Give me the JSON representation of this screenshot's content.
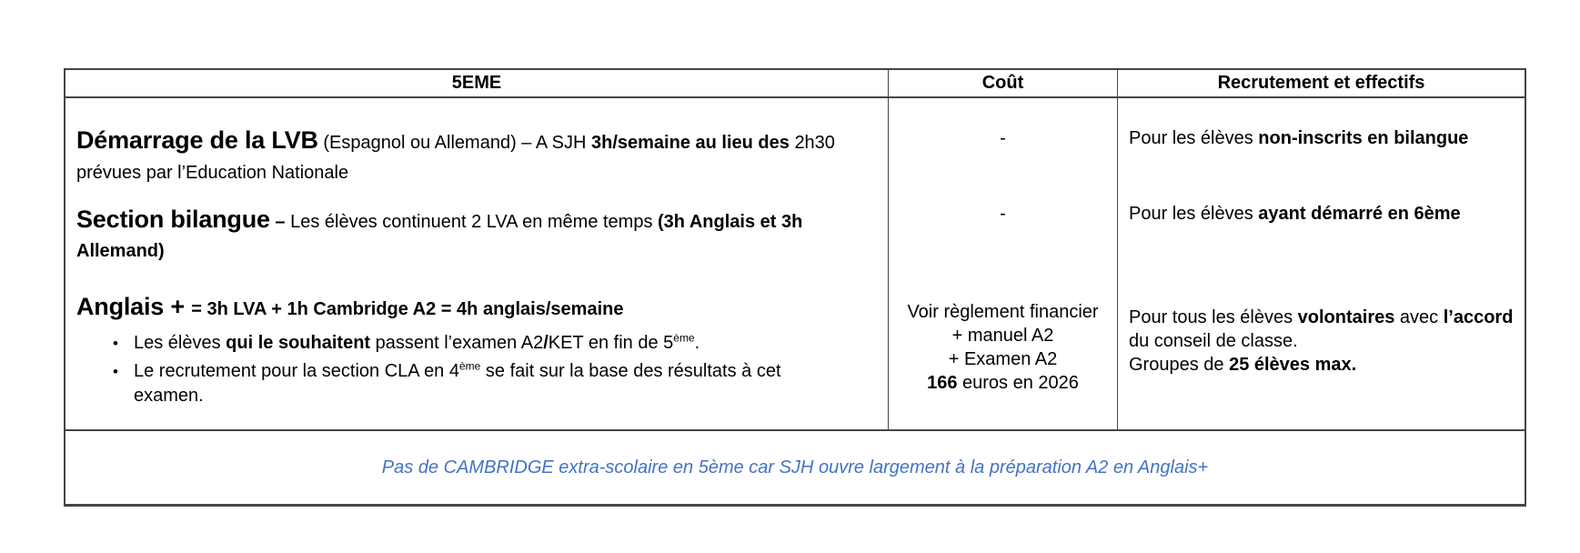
{
  "colors": {
    "footer_text": "#4472C4",
    "border": "#454545",
    "body_text": "#000000"
  },
  "glyphs": {
    "bullet": "•"
  },
  "header": {
    "col_program": "5EME",
    "col_cost": "Coût",
    "col_recruitment": "Recrutement et effectifs"
  },
  "programs": {
    "lvb": {
      "title": "Démarrage de la LVB",
      "desc_pre": " (Espagnol ou Allemand) – A SJH ",
      "desc_bold": "3h/semaine au lieu des ",
      "desc_tail": "2h30",
      "desc_line2": "prévues par l’Education Nationale",
      "cost": "-",
      "rec_pre": "Pour les élèves ",
      "rec_bold": "non-inscrits en bilangue"
    },
    "bilangue": {
      "title": "Section bilangue",
      "dash": " – ",
      "desc": "Les élèves continuent 2 LVA en même temps ",
      "desc_bold_line1": "(3h Anglais et 3h",
      "desc_bold_line2": "Allemand)",
      "cost": "-",
      "rec_pre": "Pour les élèves ",
      "rec_bold": "ayant démarré en 6ème"
    },
    "anglais_plus": {
      "title": "Anglais + ",
      "formula": "= 3h LVA + 1h Cambridge A2 = 4h anglais/semaine",
      "bullet1": {
        "pre": "Les élèves ",
        "bold": "qui le souhaitent",
        "mid": " passent l’examen A2",
        "slash": "/",
        "mid2": "KET en fin de 5",
        "sup": "ème",
        "end": "."
      },
      "bullet2": {
        "pre": "Le recrutement pour la section CLA en 4",
        "sup": "ème",
        "mid": " se fait sur la base des résultats à cet",
        "line2": "examen."
      },
      "cost": {
        "line1": "Voir règlement financier",
        "line2": "+ manuel A2",
        "line3": "+ Examen A2",
        "line4_bold": "166",
        "line4_rest": " euros en 2026"
      },
      "rec": {
        "pre": "Pour tous les élèves ",
        "bold1": "volontaires",
        "mid": " avec ",
        "bold2": "l’accord",
        "line2": "du conseil de classe.",
        "line3_pre": "Groupes de ",
        "line3_bold": "25 élèves max."
      }
    }
  },
  "footer": {
    "note": "Pas de CAMBRIDGE extra-scolaire en 5ème car SJH ouvre largement à la préparation A2 en Anglais+"
  }
}
